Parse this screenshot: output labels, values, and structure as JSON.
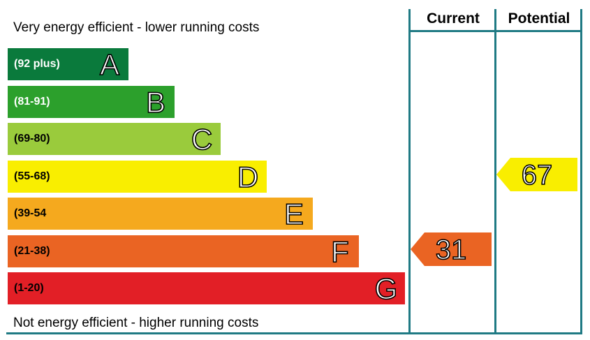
{
  "header": {
    "current_label": "Current",
    "potential_label": "Potential"
  },
  "notes": {
    "top": "Very energy efficient - lower running costs",
    "bottom": "Not energy efficient - higher running costs"
  },
  "chart_data": {
    "type": "bar",
    "bands": [
      {
        "letter": "A",
        "range": "(92 plus)",
        "min": 92,
        "max": 100,
        "color": "#0a7a3c",
        "text_color": "#ffffff"
      },
      {
        "letter": "B",
        "range": "(81-91)",
        "min": 81,
        "max": 91,
        "color": "#2ca02c",
        "text_color": "#ffffff"
      },
      {
        "letter": "C",
        "range": "(69-80)",
        "min": 69,
        "max": 80,
        "color": "#9acb3c",
        "text_color": "#000000"
      },
      {
        "letter": "D",
        "range": "(55-68)",
        "min": 55,
        "max": 68,
        "color": "#f9ee00",
        "text_color": "#000000"
      },
      {
        "letter": "E",
        "range": "(39-54",
        "min": 39,
        "max": 54,
        "color": "#f5a91e",
        "text_color": "#000000"
      },
      {
        "letter": "F",
        "range": "(21-38)",
        "min": 21,
        "max": 38,
        "color": "#ea6423",
        "text_color": "#000000"
      },
      {
        "letter": "G",
        "range": "(1-20)",
        "min": 1,
        "max": 20,
        "color": "#e21f26",
        "text_color": "#000000"
      }
    ],
    "current": {
      "value": 31,
      "band": "F",
      "color": "#ea6423"
    },
    "potential": {
      "value": 67,
      "band": "D",
      "color": "#f9ee00"
    }
  }
}
